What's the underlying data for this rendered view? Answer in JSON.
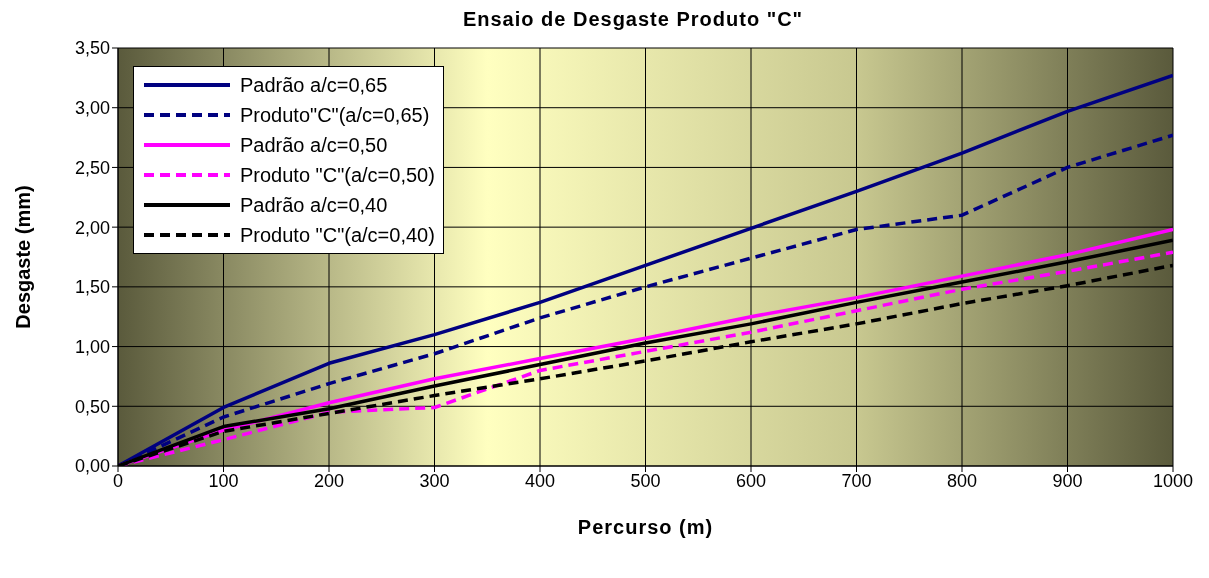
{
  "chart_data": {
    "type": "line",
    "title": "Ensaio de Desgaste Produto \"C\"",
    "xlabel": "Percurso (m)",
    "ylabel": "Desgaste (mm)",
    "x": [
      0,
      100,
      200,
      300,
      400,
      500,
      600,
      700,
      800,
      900,
      1000
    ],
    "series": [
      {
        "name": "Padrão a/c=0,65",
        "color": "#000080",
        "line_style": "solid",
        "values": [
          0,
          0.49,
          0.86,
          1.1,
          1.37,
          1.68,
          1.99,
          2.3,
          2.62,
          2.97,
          3.27
        ]
      },
      {
        "name": "Produto\"C\"(a/c=0,65)",
        "color": "#000080",
        "line_style": "dashed",
        "values": [
          0,
          0.41,
          0.69,
          0.94,
          1.24,
          1.5,
          1.74,
          1.98,
          2.1,
          2.5,
          2.77
        ]
      },
      {
        "name": "Padrão a/c=0,50",
        "color": "#ff00ff",
        "line_style": "solid",
        "values": [
          0,
          0.3,
          0.53,
          0.73,
          0.9,
          1.07,
          1.25,
          1.41,
          1.59,
          1.77,
          1.98
        ]
      },
      {
        "name": "Produto \"C\"(a/c=0,50)",
        "color": "#ff00ff",
        "line_style": "dashed",
        "values": [
          0,
          0.22,
          0.45,
          0.49,
          0.8,
          0.96,
          1.12,
          1.3,
          1.48,
          1.63,
          1.79
        ]
      },
      {
        "name": "Padrão a/c=0,40",
        "color": "#000000",
        "line_style": "solid",
        "values": [
          0,
          0.33,
          0.48,
          0.67,
          0.85,
          1.03,
          1.19,
          1.37,
          1.54,
          1.71,
          1.89
        ]
      },
      {
        "name": "Produto \"C\"(a/c=0,40)",
        "color": "#000000",
        "line_style": "dashed",
        "values": [
          0,
          0.29,
          0.44,
          0.59,
          0.73,
          0.88,
          1.04,
          1.19,
          1.36,
          1.51,
          1.68
        ]
      }
    ],
    "xlim": [
      0,
      1000
    ],
    "xticks": [
      0,
      100,
      200,
      300,
      400,
      500,
      600,
      700,
      800,
      900,
      1000
    ],
    "ylim": [
      0,
      3.5
    ],
    "yticks": [
      {
        "value": 0,
        "label": "0,00"
      },
      {
        "value": 0.5,
        "label": "0,50"
      },
      {
        "value": 1,
        "label": "1,00"
      },
      {
        "value": 1.5,
        "label": "1,50"
      },
      {
        "value": 2,
        "label": "2,00"
      },
      {
        "value": 2.5,
        "label": "2,50"
      },
      {
        "value": 3,
        "label": "3,00"
      },
      {
        "value": 3.5,
        "label": "3,50"
      }
    ],
    "grid": true,
    "legend": "top left",
    "marker": "none"
  }
}
